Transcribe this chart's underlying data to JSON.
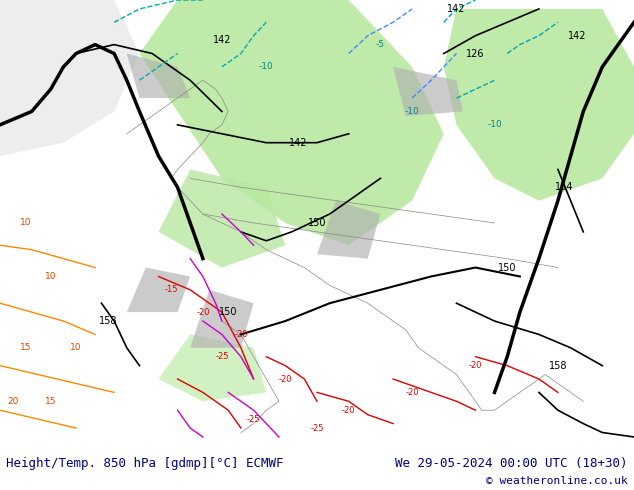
{
  "title_left": "Height/Temp. 850 hPa [gdmp][°C] ECMWF",
  "title_right": "We 29-05-2024 00:00 UTC (18+30)",
  "copyright": "© weatheronline.co.uk",
  "bg_color": "#ffffff",
  "figsize": [
    6.34,
    4.9
  ],
  "dpi": 100,
  "title_font_color": "#000080",
  "title_font_size": 9,
  "copyright_color": "#000080",
  "copyright_size": 8,
  "green_color": "#b8e8a0",
  "gray_color": "#b0b0b0"
}
